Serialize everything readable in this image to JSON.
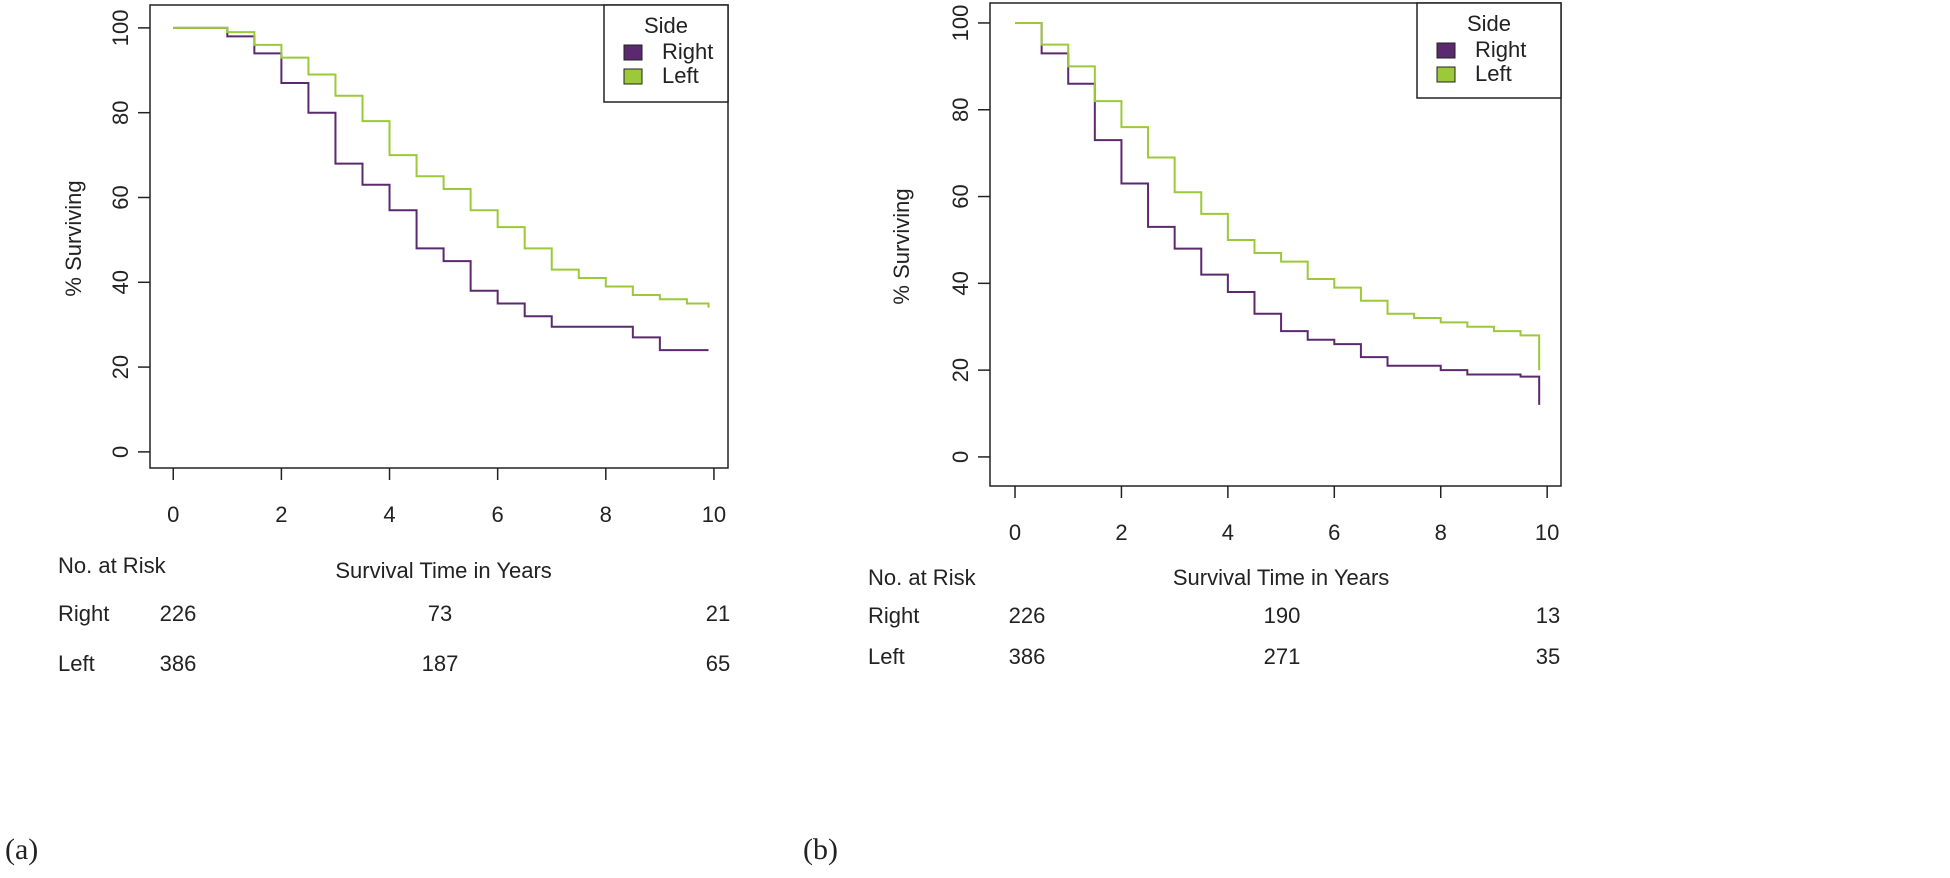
{
  "chart_data": [
    {
      "type": "step",
      "panel_label": "(a)",
      "xlabel": "Survival Time in Years",
      "ylabel": "% Surviving",
      "x": [
        0,
        0.5,
        1,
        1.5,
        2,
        2.5,
        3,
        3.5,
        4,
        4.5,
        5,
        5.5,
        6,
        6.5,
        7,
        7.5,
        8,
        8.5,
        9,
        9.5,
        9.9
      ],
      "series": [
        {
          "name": "Right",
          "color": "#5b2a6e",
          "values": [
            100,
            100,
            98,
            94,
            87,
            80,
            68,
            63,
            57,
            48,
            45,
            38,
            35,
            32,
            29.5,
            29.5,
            29.5,
            27,
            24,
            24,
            24
          ]
        },
        {
          "name": "Left",
          "color": "#9cc93a",
          "values": [
            100,
            100,
            99,
            96,
            93,
            89,
            84,
            78,
            70,
            65,
            62,
            57,
            53,
            48,
            43,
            41,
            39,
            37,
            36,
            35,
            34
          ]
        }
      ],
      "xlim": [
        -0.43,
        10.26
      ],
      "ylim": [
        -3.8,
        105.4
      ],
      "xticks": [
        0,
        2,
        4,
        6,
        8,
        10
      ],
      "yticks": [
        0,
        20,
        40,
        60,
        80,
        100
      ],
      "legend": {
        "title": "Side",
        "position": "upper right"
      },
      "risk_table": {
        "title": "No. at Risk",
        "rows": [
          {
            "name": "Right",
            "values": [
              226,
              73,
              21
            ]
          },
          {
            "name": "Left",
            "values": [
              386,
              187,
              65
            ]
          }
        ]
      }
    },
    {
      "type": "step",
      "panel_label": "(b)",
      "xlabel": "Survival Time in Years",
      "ylabel": "% Surviving",
      "x": [
        0,
        0.5,
        1,
        1.5,
        2,
        2.5,
        3,
        3.5,
        4,
        4.5,
        5,
        5.5,
        6,
        6.5,
        7,
        7.5,
        8,
        8.5,
        9,
        9.5,
        9.85
      ],
      "series": [
        {
          "name": "Right",
          "color": "#5b2a6e",
          "values": [
            100,
            93,
            86,
            73,
            63,
            53,
            48,
            42,
            38,
            33,
            29,
            27,
            26,
            23,
            21,
            21,
            20,
            19,
            19,
            18.5,
            12
          ]
        },
        {
          "name": "Left",
          "color": "#9cc93a",
          "values": [
            100,
            95,
            90,
            82,
            76,
            69,
            61,
            56,
            50,
            47,
            45,
            41,
            39,
            36,
            33,
            32,
            31,
            30,
            29,
            28,
            20
          ]
        }
      ],
      "xlim": [
        -0.47,
        10.26
      ],
      "ylim": [
        -6.7,
        104.6
      ],
      "xticks": [
        0,
        2,
        4,
        6,
        8,
        10
      ],
      "yticks": [
        0,
        20,
        40,
        60,
        80,
        100
      ],
      "legend": {
        "title": "Side",
        "position": "upper right"
      },
      "risk_table": {
        "title": "No. at Risk",
        "rows": [
          {
            "name": "Right",
            "values": [
              226,
              190,
              13
            ]
          },
          {
            "name": "Left",
            "values": [
              386,
              271,
              35
            ]
          }
        ]
      }
    }
  ]
}
